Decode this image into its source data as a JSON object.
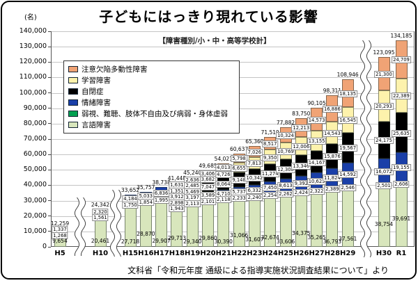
{
  "chart_data": {
    "type": "bar",
    "stacked": true,
    "title": "子どもにはっきり現れている影響",
    "subtitle": "【障害種別/小・中・高等学校計】",
    "unit_label": "(名)",
    "source": "文科省「令和元年度 通級による指導実施状況調査結果について」より",
    "ylim": [
      0,
      140000
    ],
    "ytick_step": 10000,
    "y_ticks": [
      "0",
      "10,000",
      "20,000",
      "30,000",
      "40,000",
      "50,000",
      "60,000",
      "70,000",
      "80,000",
      "90,000",
      "100,000",
      "110,000",
      "120,000",
      "130,000",
      "140,000"
    ],
    "grid": true,
    "legend_position": "upper-left-inside",
    "axis_breaks_after": [
      "H5",
      "H10",
      "H29"
    ],
    "categories": [
      "H5",
      "H10",
      "H15",
      "H16",
      "H17",
      "H18",
      "H19",
      "H20",
      "H21",
      "H22",
      "H23",
      "H24",
      "H25",
      "H26",
      "H27",
      "H28",
      "H29",
      "H30",
      "R1"
    ],
    "series": [
      {
        "name": "言語障害",
        "color": "#D8E6BC",
        "values": [
          9654,
          20461,
          27718,
          28870,
          29907,
          29713,
          29340,
          29860,
          30390,
          31066,
          31607,
          32674,
          33606,
          34375,
          35265,
          36793,
          37561,
          38754,
          39691
        ]
      },
      {
        "name": "弱視、難聴、肢体不自由及び病弱・身体虚弱",
        "color": "#00A050",
        "values": [
          1268,
          1561,
          1750,
          1854,
          1995,
          1943,
          2113,
          2101,
          2118,
          2233,
          2240,
          2254,
          2262,
          2424,
          2322,
          2389,
          2546,
          2501,
          2606
        ]
      },
      {
        "name": "情緒障害",
        "color": "#1A3FA8",
        "values": [
          1337,
          2320,
          4184,
          5033,
          6836,
          2898,
          3197,
          3589,
          4710,
          5737,
          6332,
          7450,
          8613,
          9392,
          10623,
          11824,
          14592,
          16072,
          19155
        ]
      },
      {
        "name": "自閉症",
        "color": "#000000",
        "values": [
          0,
          0,
          0,
          0,
          0,
          3912,
          5469,
          7047,
          8064,
          9148,
          10342,
          11274,
          12308,
          13340,
          14167,
          15876,
          19567,
          24175,
          25635
        ]
      },
      {
        "name": "学習障害",
        "color": "#FDF2AC",
        "values": [
          0,
          0,
          0,
          0,
          0,
          1351,
          2485,
          3682,
          4726,
          6655,
          7813,
          9350,
          10769,
          12006,
          13155,
          14543,
          16545,
          20293,
          22389
        ]
      },
      {
        "name": "注意欠陥多動性障害",
        "color": "#F0A375",
        "values": [
          0,
          0,
          0,
          0,
          0,
          1631,
          2636,
          3406,
          4013,
          5798,
          7026,
          8517,
          10324,
          12213,
          14573,
          16886,
          18135,
          21300,
          24709
        ]
      }
    ],
    "totals": [
      12259,
      24342,
      33652,
      35757,
      38738,
      41448,
      45240,
      49685,
      54021,
      60637,
      65360,
      71519,
      77882,
      83750,
      90105,
      98311,
      108946,
      123095,
      134185
    ]
  }
}
